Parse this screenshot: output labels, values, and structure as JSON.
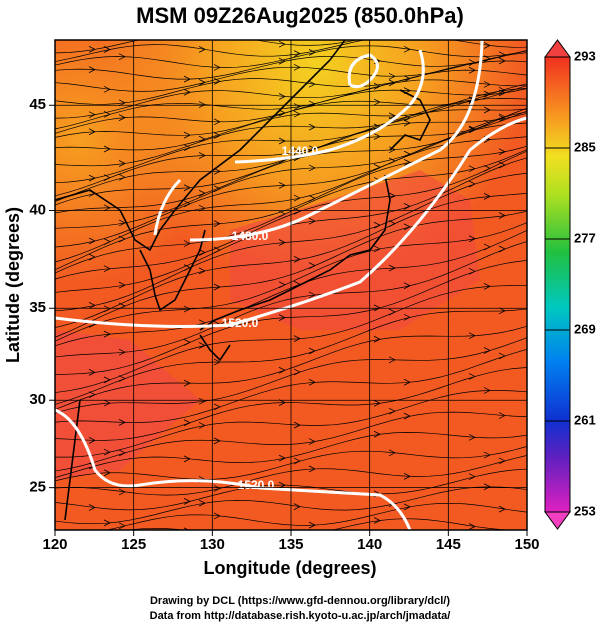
{
  "chart_data": {
    "type": "map",
    "title": "MSM 09Z26Aug2025 (850.0hPa)",
    "x_label": "Longitude (degrees)",
    "y_label": "Latitude  (degrees)",
    "xlim": [
      120,
      150
    ],
    "xticks": [
      120,
      125,
      130,
      135,
      140,
      145,
      150
    ],
    "ylim": [
      22.5,
      47.9
    ],
    "yticks": [
      25,
      30,
      35,
      40,
      45
    ],
    "projection": "mercator",
    "colorbar": {
      "lim": [
        253,
        293
      ],
      "ticks": [
        253,
        261,
        269,
        277,
        285,
        293
      ]
    },
    "contours": [
      {
        "value": 1440,
        "label": "1440.0"
      },
      {
        "value": 1480,
        "label": "1480.0"
      },
      {
        "value": 1520,
        "label": "1520.0"
      },
      {
        "value": 1520,
        "label": "1520.0"
      }
    ],
    "footer": [
      "Drawing by DCL (https://www.gfd-dennou.org/library/dcl/)",
      "Data from http://database.rish.kyoto-u.ac.jp/arch/jmadata/"
    ]
  }
}
